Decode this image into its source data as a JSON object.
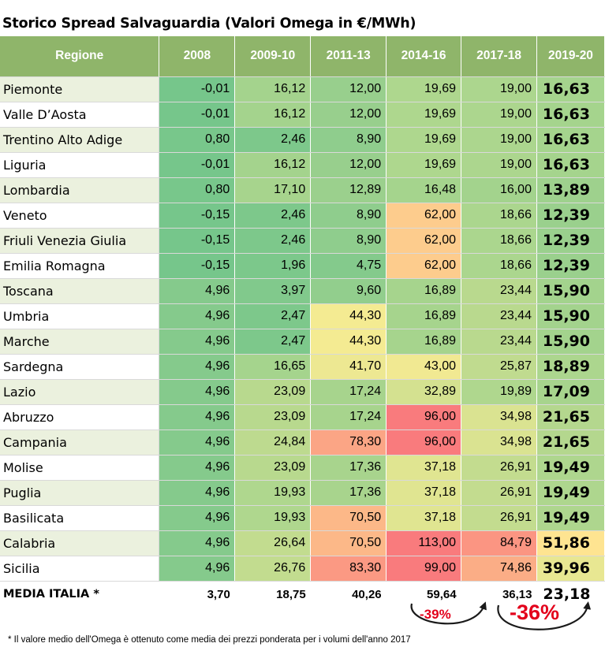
{
  "title": "Storico Spread Salvaguardia (Valori Omega in €/MWh)",
  "chart_data": {
    "type": "table",
    "title": "Storico Spread Salvaguardia (Valori Omega in €/MWh)",
    "columns": [
      "Regione",
      "2008",
      "2009-10",
      "2011-13",
      "2014-16",
      "2017-18",
      "2019-20"
    ],
    "rows": [
      {
        "region": "Piemonte",
        "values": [
          "-0,01",
          "16,12",
          "12,00",
          "19,69",
          "19,00",
          "16,63"
        ]
      },
      {
        "region": "Valle D’Aosta",
        "values": [
          "-0,01",
          "16,12",
          "12,00",
          "19,69",
          "19,00",
          "16,63"
        ]
      },
      {
        "region": "Trentino Alto Adige",
        "values": [
          "0,80",
          "2,46",
          "8,90",
          "19,69",
          "19,00",
          "16,63"
        ]
      },
      {
        "region": "Liguria",
        "values": [
          "-0,01",
          "16,12",
          "12,00",
          "19,69",
          "19,00",
          "16,63"
        ]
      },
      {
        "region": "Lombardia",
        "values": [
          "0,80",
          "17,10",
          "12,89",
          "16,48",
          "16,00",
          "13,89"
        ]
      },
      {
        "region": "Veneto",
        "values": [
          "-0,15",
          "2,46",
          "8,90",
          "62,00",
          "18,66",
          "12,39"
        ]
      },
      {
        "region": "Friuli Venezia Giulia",
        "values": [
          "-0,15",
          "2,46",
          "8,90",
          "62,00",
          "18,66",
          "12,39"
        ]
      },
      {
        "region": "Emilia Romagna",
        "values": [
          "-0,15",
          "1,96",
          "4,75",
          "62,00",
          "18,66",
          "12,39"
        ]
      },
      {
        "region": "Toscana",
        "values": [
          "4,96",
          "3,97",
          "9,60",
          "16,89",
          "23,44",
          "15,90"
        ]
      },
      {
        "region": "Umbria",
        "values": [
          "4,96",
          "2,47",
          "44,30",
          "16,89",
          "23,44",
          "15,90"
        ]
      },
      {
        "region": "Marche",
        "values": [
          "4,96",
          "2,47",
          "44,30",
          "16,89",
          "23,44",
          "15,90"
        ]
      },
      {
        "region": "Sardegna",
        "values": [
          "4,96",
          "16,65",
          "41,70",
          "43,00",
          "25,87",
          "18,89"
        ]
      },
      {
        "region": "Lazio",
        "values": [
          "4,96",
          "23,09",
          "17,24",
          "32,89",
          "19,89",
          "17,09"
        ]
      },
      {
        "region": "Abruzzo",
        "values": [
          "4,96",
          "23,09",
          "17,24",
          "96,00",
          "34,98",
          "21,65"
        ]
      },
      {
        "region": "Campania",
        "values": [
          "4,96",
          "24,84",
          "78,30",
          "96,00",
          "34,98",
          "21,65"
        ]
      },
      {
        "region": "Molise",
        "values": [
          "4,96",
          "23,09",
          "17,36",
          "37,18",
          "26,91",
          "19,49"
        ]
      },
      {
        "region": "Puglia",
        "values": [
          "4,96",
          "19,93",
          "17,36",
          "37,18",
          "26,91",
          "19,49"
        ]
      },
      {
        "region": "Basilicata",
        "values": [
          "4,96",
          "19,93",
          "70,50",
          "37,18",
          "26,91",
          "19,49"
        ]
      },
      {
        "region": "Calabria",
        "values": [
          "4,96",
          "26,64",
          "70,50",
          "113,00",
          "84,79",
          "51,86"
        ]
      },
      {
        "region": "Sicilia",
        "values": [
          "4,96",
          "26,76",
          "83,30",
          "99,00",
          "74,86",
          "39,96"
        ]
      }
    ],
    "summary": {
      "label": "MEDIA ITALIA *",
      "values": [
        "3,70",
        "18,75",
        "40,26",
        "59,64",
        "36,13",
        "23,18"
      ]
    },
    "annotations": [
      {
        "text": "-39%",
        "from": "2014-16",
        "to": "2017-18"
      },
      {
        "text": "-36%",
        "from": "2017-18",
        "to": "2019-20"
      }
    ],
    "heatmap_colors": {
      "low": "#63be7b",
      "mid": "#ffeb84",
      "high": "#f8696b"
    }
  },
  "footnote": "* Il valore medio dell'Omega è ottenuto come media dei prezzi ponderata per i volumi dell'anno 2017",
  "colors": {
    "header_bg": "#8fb56a",
    "region_bg_alt": "#ebf1de",
    "accent_red": "#e3001b"
  }
}
